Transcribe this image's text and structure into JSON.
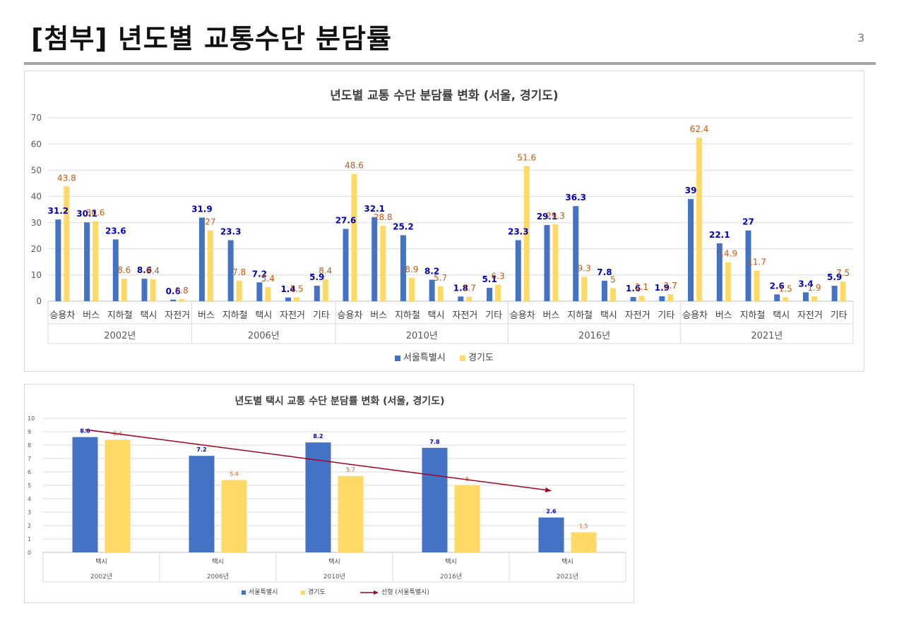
{
  "page": {
    "title": "[첨부] 년도별 교통수단 분담률",
    "page_number": "3"
  },
  "colors": {
    "seoul": "#4472c4",
    "gyeonggi": "#ffd966",
    "seoul_label": "#0000c0",
    "gyeonggi_label": "#c65911",
    "trend": "#a50021",
    "grid": "#d9d9d9",
    "axis_text": "#595959"
  },
  "chart_data": [
    {
      "type": "bar",
      "title": "년도별 교통 수단 분담률 변화 (서울, 경기도)",
      "ylim": [
        0,
        70
      ],
      "yticks": [
        0,
        10,
        20,
        30,
        40,
        50,
        60,
        70
      ],
      "grid": true,
      "legend_position": "bottom",
      "groups": [
        {
          "label": "2002년",
          "categories": [
            "승용차",
            "버스",
            "지하철",
            "택시",
            "자전거"
          ]
        },
        {
          "label": "2006년",
          "categories": [
            "버스",
            "지하철",
            "택시",
            "자전거",
            "기타"
          ]
        },
        {
          "label": "2010년",
          "categories": [
            "승용차",
            "버스",
            "지하철",
            "택시",
            "자전거",
            "기타"
          ]
        },
        {
          "label": "2016년",
          "categories": [
            "승용차",
            "버스",
            "지하철",
            "택시",
            "자전거",
            "기타"
          ]
        },
        {
          "label": "2021년",
          "categories": [
            "승용차",
            "버스",
            "지하철",
            "택시",
            "자전거",
            "기타"
          ]
        }
      ],
      "series": [
        {
          "name": "서울특별시",
          "values": [
            31.2,
            30.1,
            23.6,
            8.6,
            0.6,
            31.9,
            23.3,
            7.2,
            1.4,
            5.9,
            27.6,
            32.1,
            25.2,
            8.2,
            1.8,
            5.1,
            23.3,
            29.1,
            36.3,
            7.8,
            1.6,
            1.9,
            39,
            22.1,
            27,
            2.6,
            3.4,
            5.9
          ]
        },
        {
          "name": "경기도",
          "values": [
            43.8,
            30.6,
            8.6,
            8.4,
            0.8,
            27,
            7.8,
            5.4,
            1.5,
            8.4,
            48.6,
            28.8,
            8.9,
            5.7,
            1.7,
            6.3,
            51.6,
            29.3,
            9.3,
            5,
            2.1,
            2.7,
            62.4,
            14.9,
            11.7,
            1.5,
            1.9,
            7.5
          ]
        }
      ]
    },
    {
      "type": "bar",
      "title": "년도별 택시 교통 수단 분담률 변화 (서울, 경기도)",
      "ylim": [
        0,
        10
      ],
      "yticks": [
        0,
        1,
        2,
        3,
        4,
        5,
        6,
        7,
        8,
        9,
        10
      ],
      "grid": true,
      "legend_position": "bottom",
      "groups": [
        {
          "label": "2002년",
          "categories": [
            "택시"
          ]
        },
        {
          "label": "2006년",
          "categories": [
            "택시"
          ]
        },
        {
          "label": "2010년",
          "categories": [
            "택시"
          ]
        },
        {
          "label": "2016년",
          "categories": [
            "택시"
          ]
        },
        {
          "label": "2021년",
          "categories": [
            "택시"
          ]
        }
      ],
      "series": [
        {
          "name": "서울특별시",
          "values": [
            8.6,
            7.2,
            8.2,
            7.8,
            2.6
          ]
        },
        {
          "name": "경기도",
          "values": [
            8.4,
            5.4,
            5.7,
            5,
            1.5
          ]
        }
      ],
      "trendline": {
        "name": "선형 (서울특별시)",
        "of_series": "서울특별시",
        "type": "linear"
      }
    }
  ]
}
